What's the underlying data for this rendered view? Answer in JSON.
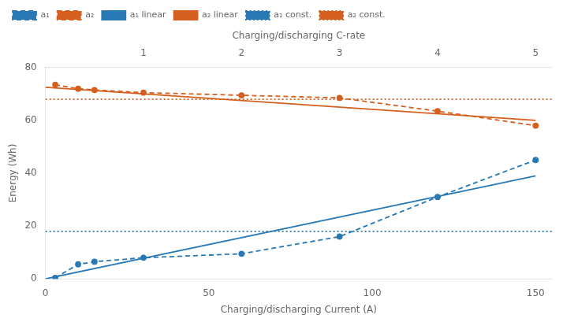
{
  "chart_data": {
    "type": "line",
    "xlabel": "Charging/discharging Current (A)",
    "x2label": "Charging/discharging C-rate",
    "ylabel": "Energy (Wh)",
    "xlim": [
      0,
      155
    ],
    "xticks": [
      0,
      50,
      100,
      150
    ],
    "x2lim": [
      0,
      155
    ],
    "x2ticks": [
      {
        "value": 30,
        "label": "1"
      },
      {
        "value": 60,
        "label": "2"
      },
      {
        "value": 90,
        "label": "3"
      },
      {
        "value": 120,
        "label": "4"
      },
      {
        "value": 150,
        "label": "5"
      }
    ],
    "ylim": [
      0,
      80
    ],
    "yticks": [
      0,
      20,
      40,
      60,
      80
    ],
    "grid": false,
    "legend": "upper left",
    "series": [
      {
        "name": "a₁",
        "color": "#2878b5",
        "line_style": "dashed",
        "marker": "circle",
        "x": [
          3,
          10,
          15,
          30,
          60,
          90,
          120,
          150
        ],
        "values": [
          0.4,
          5.5,
          6.5,
          8.0,
          9.5,
          16.0,
          31.0,
          45.0
        ]
      },
      {
        "name": "a₂",
        "color": "#d45f1e",
        "line_style": "dashed",
        "marker": "circle",
        "x": [
          3,
          10,
          15,
          30,
          60,
          90,
          120,
          150
        ],
        "values": [
          73.5,
          72.0,
          71.5,
          70.5,
          69.5,
          68.5,
          63.5,
          58.0
        ]
      },
      {
        "name": "a₁ linear",
        "color": "#2878b5",
        "line_style": "solid",
        "marker": "none",
        "x": [
          0,
          150
        ],
        "values": [
          0,
          39.0
        ]
      },
      {
        "name": "a₂ linear",
        "color": "#d45f1e",
        "line_style": "solid",
        "marker": "none",
        "x": [
          0,
          150
        ],
        "values": [
          72.5,
          60.0
        ]
      },
      {
        "name": "a₁ const.",
        "type": "hline",
        "color": "#2878b5",
        "line_style": "dotted",
        "marker": "none",
        "values": [
          18.0
        ]
      },
      {
        "name": "a₂ const.",
        "type": "hline",
        "color": "#d45f1e",
        "line_style": "dotted",
        "marker": "none",
        "values": [
          68.0
        ]
      }
    ]
  }
}
